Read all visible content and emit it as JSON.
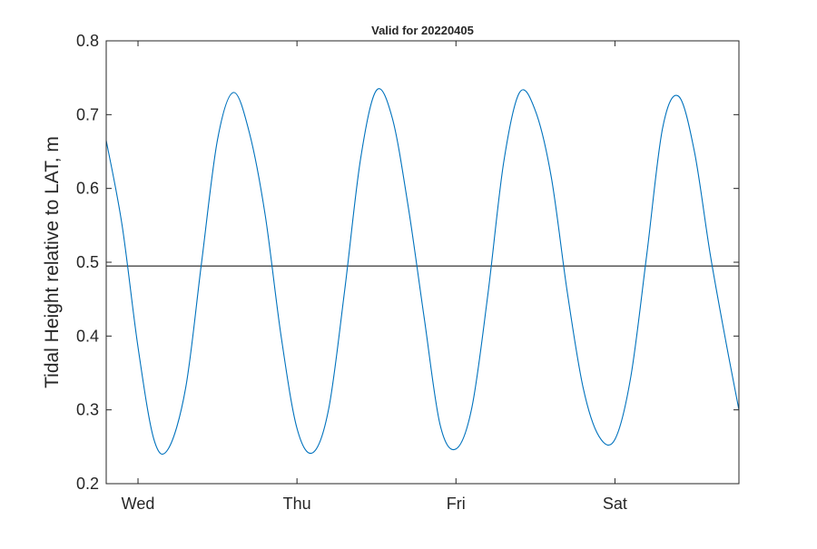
{
  "chart_data": {
    "type": "line",
    "title": "Valid for 20220405",
    "xlabel": "",
    "ylabel": "Tidal Height relative to LAT, m",
    "x_unit": "days",
    "xlim": [
      -0.2,
      3.78
    ],
    "ylim": [
      0.2,
      0.8
    ],
    "x_ticks": [
      {
        "value": 0,
        "label": "Wed"
      },
      {
        "value": 1,
        "label": "Thu"
      },
      {
        "value": 2,
        "label": "Fri"
      },
      {
        "value": 3,
        "label": "Sat"
      }
    ],
    "y_ticks": [
      {
        "value": 0.2,
        "label": "0.2"
      },
      {
        "value": 0.3,
        "label": "0.3"
      },
      {
        "value": 0.4,
        "label": "0.4"
      },
      {
        "value": 0.5,
        "label": "0.5"
      },
      {
        "value": 0.6,
        "label": "0.6"
      },
      {
        "value": 0.7,
        "label": "0.7"
      },
      {
        "value": 0.8,
        "label": "0.8"
      }
    ],
    "grid": false,
    "series": [
      {
        "color": "#0072bd",
        "x": [
          -0.2,
          -0.1,
          0.0,
          0.1,
          0.19,
          0.3,
          0.4,
          0.5,
          0.6,
          0.7,
          0.8,
          0.9,
          1.0,
          1.1,
          1.2,
          1.3,
          1.4,
          1.5,
          1.6,
          1.7,
          1.8,
          1.9,
          2.0,
          2.1,
          2.2,
          2.3,
          2.4,
          2.5,
          2.6,
          2.7,
          2.8,
          2.9,
          3.0,
          3.1,
          3.2,
          3.3,
          3.4,
          3.5,
          3.6,
          3.7,
          3.78
        ],
        "y": [
          0.665,
          0.55,
          0.385,
          0.26,
          0.247,
          0.33,
          0.5,
          0.666,
          0.73,
          0.676,
          0.564,
          0.4,
          0.275,
          0.242,
          0.302,
          0.462,
          0.64,
          0.733,
          0.695,
          0.575,
          0.425,
          0.28,
          0.247,
          0.303,
          0.455,
          0.635,
          0.73,
          0.705,
          0.615,
          0.46,
          0.33,
          0.264,
          0.26,
          0.345,
          0.51,
          0.682,
          0.725,
          0.65,
          0.51,
          0.39,
          0.3
        ]
      }
    ],
    "reference_line": {
      "y": 0.495,
      "color": "#000000"
    }
  }
}
